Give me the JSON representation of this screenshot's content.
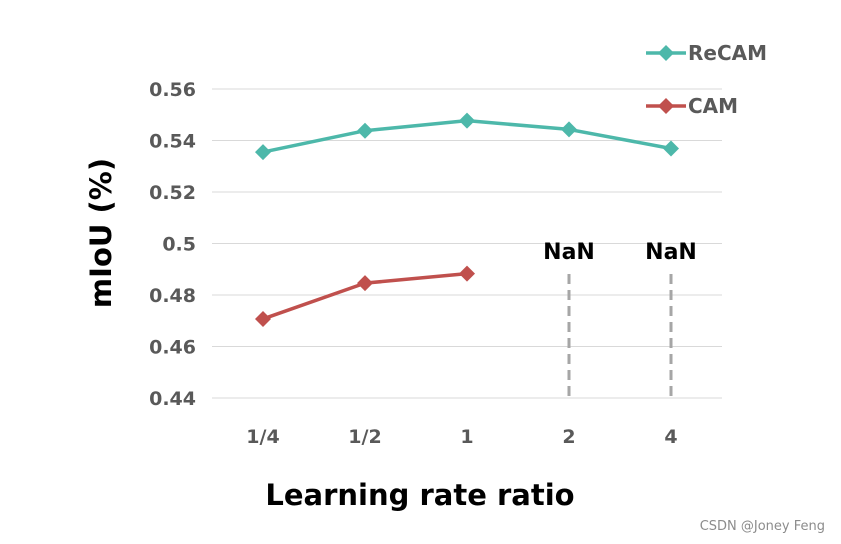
{
  "chart_data": {
    "type": "line",
    "categories": [
      "1/4",
      "1/2",
      "1",
      "2",
      "4"
    ],
    "series": [
      {
        "name": "ReCAM",
        "color": "#4db8aa",
        "values": [
          0.5355,
          0.5438,
          0.5477,
          0.5443,
          0.5369
        ]
      },
      {
        "name": "CAM",
        "color": "#c0504d",
        "values": [
          0.4707,
          0.4846,
          0.4883,
          null,
          null
        ]
      }
    ],
    "yticks": [
      "0.44",
      "0.46",
      "0.48",
      "0.5",
      "0.52",
      "0.54",
      "0.56"
    ],
    "ylim": [
      0.44,
      0.56
    ],
    "xlabel": "Learning rate ratio",
    "ylabel": "mIoU (%)",
    "annotations": [
      {
        "category": "2",
        "text": "NaN"
      },
      {
        "category": "4",
        "text": "NaN"
      }
    ],
    "legend": "top-right",
    "grid": true
  },
  "watermark": "CSDN @Joney Feng"
}
